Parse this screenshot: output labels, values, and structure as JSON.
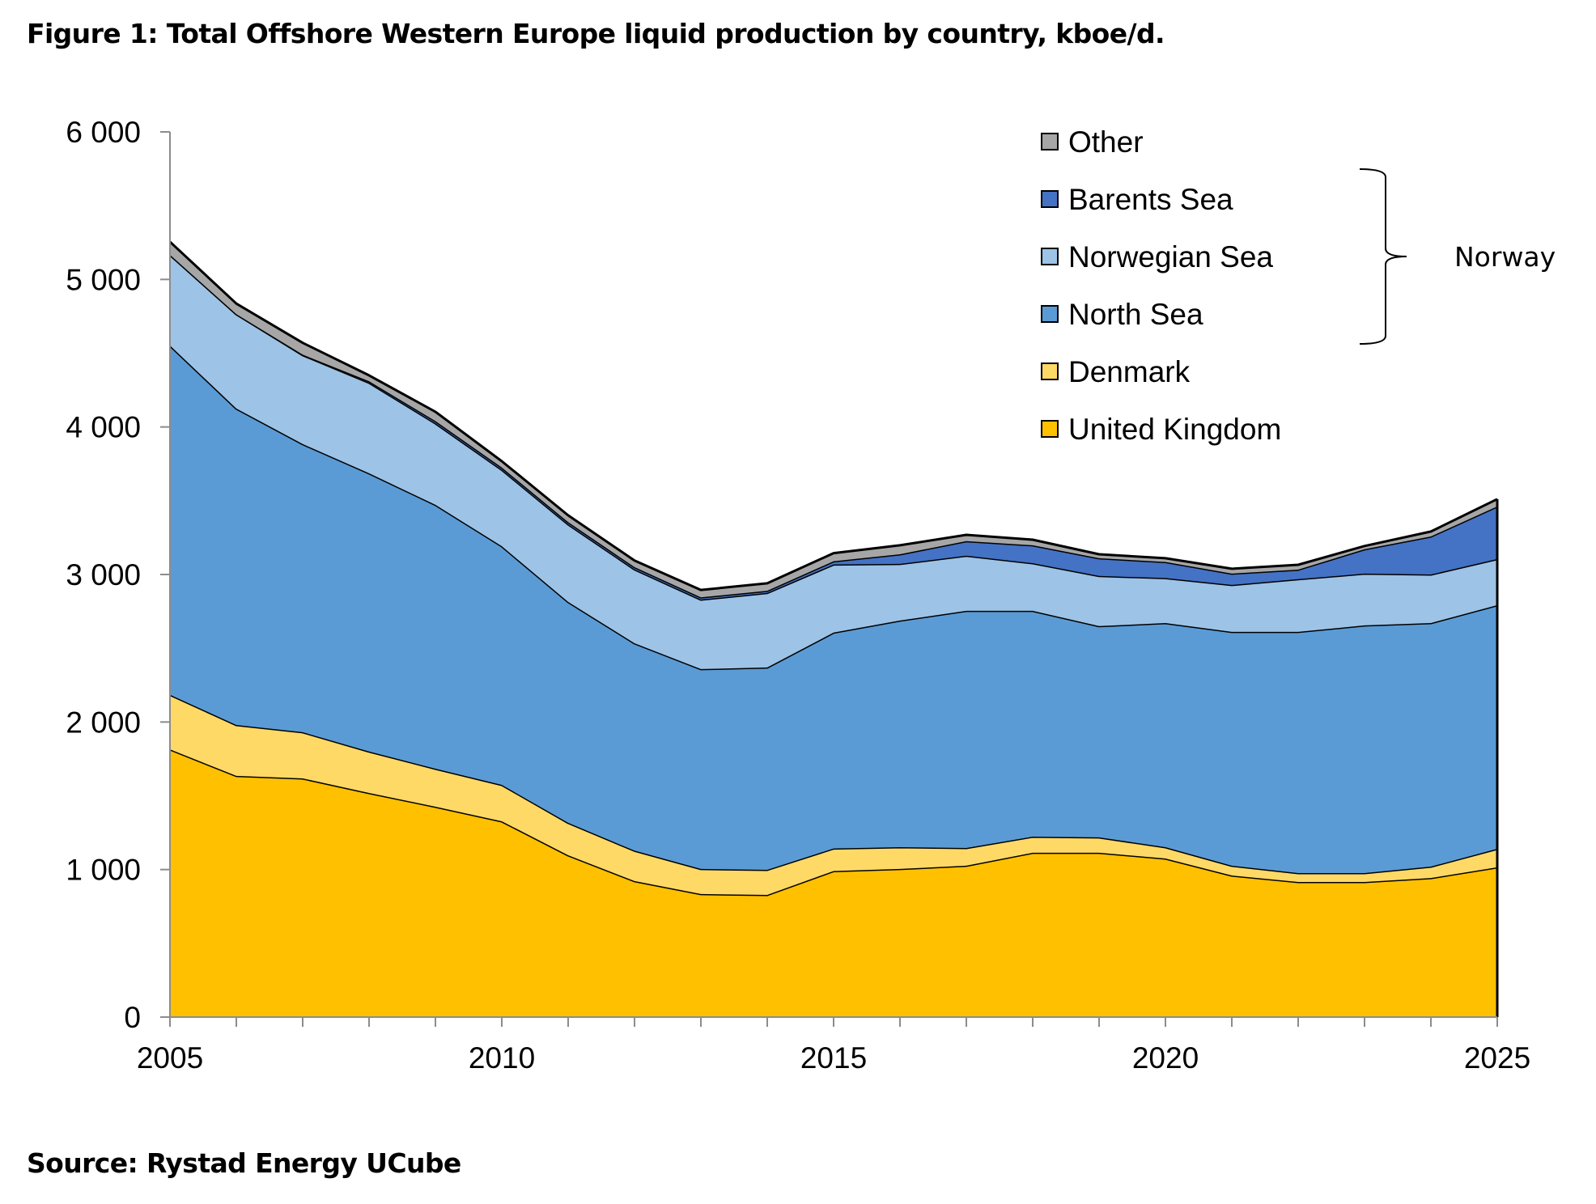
{
  "figure": {
    "title": "Figure 1: Total Offshore Western Europe liquid production by country, kboe/d.",
    "source": "Source: Rystad Energy UCube"
  },
  "chart_data": {
    "type": "area",
    "stacked": true,
    "title": "Figure 1: Total Offshore Western Europe liquid production by country, kboe/d.",
    "xlabel": "",
    "ylabel": "",
    "unit": "kboe/d",
    "x": [
      2005,
      2006,
      2007,
      2008,
      2009,
      2010,
      2011,
      2012,
      2013,
      2014,
      2015,
      2016,
      2017,
      2018,
      2019,
      2020,
      2021,
      2022,
      2023,
      2024,
      2025
    ],
    "xlim": [
      2005,
      2025
    ],
    "ylim": [
      0,
      6000
    ],
    "x_ticks": [
      "2005",
      "2010",
      "2015",
      "2020",
      "2025"
    ],
    "x_tick_values": [
      2005,
      2010,
      2015,
      2020,
      2025
    ],
    "y_ticks": [
      "0",
      "1 000",
      "2 000",
      "3 000",
      "4 000",
      "5 000",
      "6 000"
    ],
    "y_tick_values": [
      0,
      1000,
      2000,
      3000,
      4000,
      5000,
      6000
    ],
    "grid": false,
    "legend_position": "top-right",
    "series": [
      {
        "name": "United Kingdom",
        "color": "#FFC000",
        "values": [
          1815,
          1635,
          1618,
          1519,
          1426,
          1327,
          1097,
          922,
          834,
          828,
          990,
          1004,
          1026,
          1114,
          1114,
          1075,
          960,
          916,
          916,
          943,
          1015
        ]
      },
      {
        "name": "Denmark",
        "color": "#FFD966",
        "values": [
          370,
          345,
          313,
          281,
          258,
          247,
          220,
          206,
          170,
          170,
          153,
          148,
          120,
          109,
          104,
          77,
          66,
          60,
          60,
          77,
          126
        ]
      },
      {
        "name": "North Sea",
        "group": "Norway",
        "color": "#5B9BD5",
        "values": [
          2367,
          2145,
          1953,
          1886,
          1788,
          1618,
          1497,
          1406,
          1355,
          1372,
          1463,
          1536,
          1608,
          1531,
          1432,
          1519,
          1585,
          1635,
          1679,
          1651,
          1651
        ]
      },
      {
        "name": "Norwegian Sea",
        "group": "Norway",
        "color": "#9DC3E6",
        "values": [
          615,
          640,
          603,
          614,
          553,
          518,
          526,
          501,
          471,
          505,
          462,
          384,
          373,
          323,
          340,
          305,
          318,
          357,
          351,
          329,
          313
        ]
      },
      {
        "name": "Barents Sea",
        "group": "Norway",
        "color": "#4472C4",
        "values": [
          0,
          0,
          3,
          10,
          15,
          15,
          15,
          15,
          15,
          15,
          22,
          65,
          99,
          121,
          120,
          109,
          77,
          65,
          165,
          258,
          356
        ]
      },
      {
        "name": "Other",
        "color": "#A6A6A6",
        "values": [
          88,
          71,
          80,
          40,
          63,
          43,
          46,
          45,
          50,
          50,
          55,
          61,
          43,
          38,
          27,
          25,
          33,
          33,
          22,
          33,
          50
        ]
      }
    ],
    "legend": [
      {
        "name": "Other",
        "color": "#A6A6A6"
      },
      {
        "name": "Barents Sea",
        "color": "#4472C4"
      },
      {
        "name": "Norwegian Sea",
        "color": "#9DC3E6"
      },
      {
        "name": "North Sea",
        "color": "#5B9BD5"
      },
      {
        "name": "Denmark",
        "color": "#FFD966"
      },
      {
        "name": "United Kingdom",
        "color": "#FFC000"
      }
    ],
    "legend_group": {
      "label": "Norway",
      "members": [
        "Barents Sea",
        "Norwegian Sea",
        "North Sea"
      ]
    }
  }
}
